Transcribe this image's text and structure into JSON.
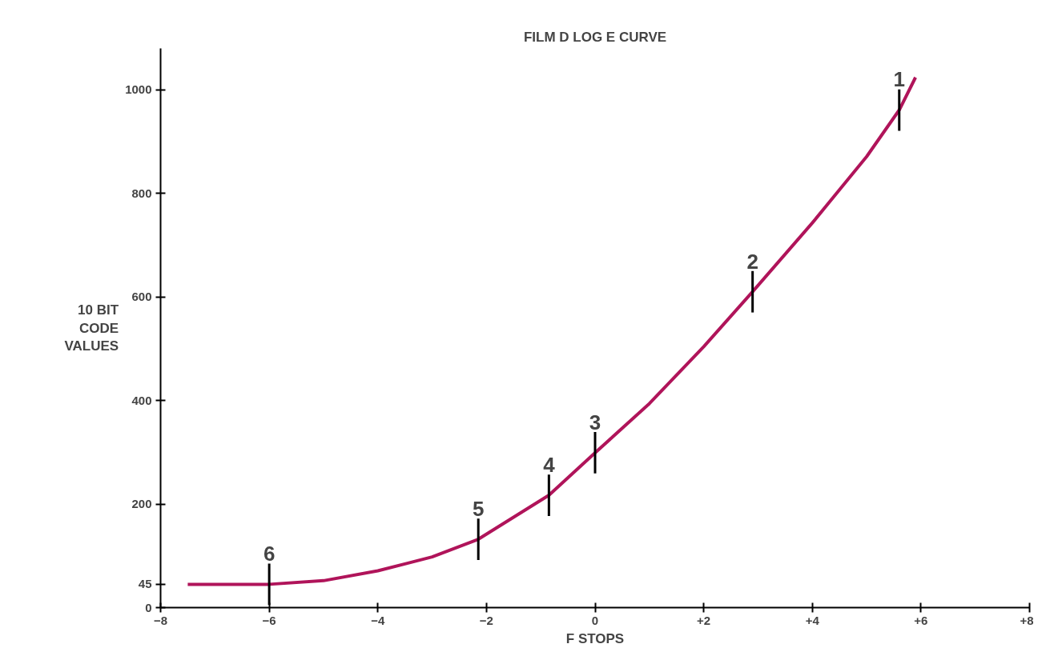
{
  "chart_data": {
    "type": "line",
    "title": "FILM D LOG E CURVE",
    "xlabel": "F STOPS",
    "ylabel": "10 BIT\nCODE\nVALUES",
    "x": [
      -7.5,
      -6,
      -5,
      -4,
      -3,
      -2.15,
      -0.85,
      0,
      1,
      2,
      2.9,
      4,
      5,
      5.6,
      5.9
    ],
    "series": [
      {
        "color": "#b0145a",
        "values": [
          45,
          45,
          52,
          71,
          98,
          132,
          217,
          299,
          394,
          504,
          610,
          743,
          871,
          961,
          1024
        ]
      }
    ],
    "xlim": [
      -8,
      8
    ],
    "ylim": [
      0,
      1080
    ],
    "xticks": [
      -8,
      -6,
      -4,
      -2,
      0,
      {
        "value": 2,
        "label": "+2"
      },
      {
        "value": 4,
        "label": "+4"
      },
      {
        "value": 6,
        "label": "+6"
      },
      {
        "value": 8,
        "label": "+8"
      }
    ],
    "yticks": [
      0,
      45,
      200,
      400,
      600,
      800,
      1000
    ],
    "annotations": [
      {
        "text": "1",
        "x": 5.6,
        "y": 961
      },
      {
        "text": "2",
        "x": 2.9,
        "y": 610
      },
      {
        "text": "3",
        "x": 0,
        "y": 299
      },
      {
        "text": "4",
        "x": -0.85,
        "y": 217
      },
      {
        "text": "5",
        "x": -2.15,
        "y": 132
      },
      {
        "text": "6",
        "x": -6,
        "y": 45
      }
    ],
    "grid": false,
    "marker": "none",
    "line_style": "solid"
  }
}
